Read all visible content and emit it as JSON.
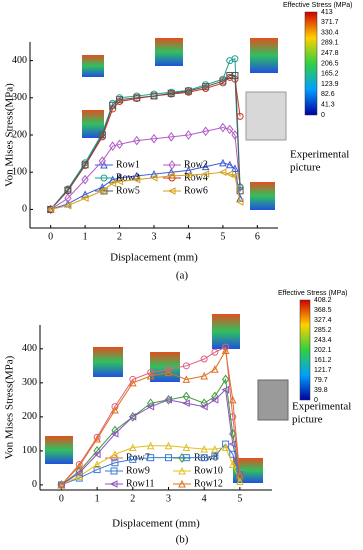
{
  "chart_data": [
    {
      "type": "line",
      "caption": "(a)",
      "x_label": "Displacement (mm)",
      "y_label": "Von Mises Stress(MPa)",
      "x": [
        0,
        0.5,
        1,
        1.5,
        1.8,
        2,
        2.5,
        3,
        3.5,
        4,
        4.5,
        5,
        5.2,
        5.35,
        5.5
      ],
      "series": [
        {
          "name": "Row1",
          "color": "#3b5bdb",
          "marker": "triangle",
          "values": [
            0,
            15,
            40,
            60,
            80,
            85,
            90,
            95,
            100,
            105,
            115,
            125,
            120,
            110,
            30
          ]
        },
        {
          "name": "Row2",
          "color": "#b05cc8",
          "marker": "diamond",
          "values": [
            0,
            30,
            80,
            130,
            170,
            175,
            185,
            190,
            195,
            200,
            210,
            220,
            215,
            200,
            60
          ]
        },
        {
          "name": "Row3",
          "color": "#1a9e8f",
          "marker": "circle",
          "values": [
            0,
            55,
            125,
            205,
            285,
            300,
            305,
            310,
            315,
            320,
            335,
            350,
            400,
            405,
            60
          ]
        },
        {
          "name": "Row4",
          "color": "#d03020",
          "marker": "circle",
          "values": [
            0,
            50,
            118,
            195,
            270,
            290,
            298,
            305,
            310,
            315,
            325,
            340,
            355,
            350,
            250
          ]
        },
        {
          "name": "Row5",
          "color": "#555555",
          "marker": "square",
          "values": [
            0,
            52,
            120,
            200,
            280,
            295,
            300,
            305,
            312,
            318,
            330,
            345,
            360,
            360,
            50
          ]
        },
        {
          "name": "Row6",
          "color": "#d4a017",
          "marker": "triangle-left",
          "values": [
            0,
            10,
            30,
            50,
            70,
            75,
            80,
            85,
            90,
            92,
            95,
            100,
            95,
            90,
            20
          ]
        }
      ],
      "xlim": [
        -0.6,
        6.6
      ],
      "xticks": [
        0,
        1,
        2,
        3,
        4,
        5,
        6
      ],
      "ylim": [
        -50,
        450
      ],
      "yticks": [
        0,
        100,
        200,
        300,
        400
      ],
      "colorbar": {
        "title": "Effective Stress (MPa)",
        "ticks": [
          413,
          371.7,
          330.4,
          289.1,
          247.8,
          206.5,
          165.2,
          123.9,
          82.6,
          41.3,
          0
        ]
      },
      "annotation": [
        "Experimental",
        "picture"
      ]
    },
    {
      "type": "line",
      "caption": "(b)",
      "x_label": "Displacement (mm)",
      "y_label": "Von Mises Stress(MPa)",
      "x": [
        0,
        0.5,
        1,
        1.5,
        2,
        2.5,
        3,
        3.5,
        4,
        4.3,
        4.6,
        4.8,
        5
      ],
      "series": [
        {
          "name": "Row7",
          "color": "#e06080",
          "marker": "circle",
          "values": [
            0,
            60,
            140,
            230,
            310,
            330,
            340,
            350,
            370,
            390,
            405,
            200,
            20
          ]
        },
        {
          "name": "Row8",
          "color": "#3a9a3a",
          "marker": "diamond",
          "values": [
            0,
            40,
            100,
            160,
            200,
            240,
            250,
            260,
            240,
            260,
            310,
            150,
            20
          ]
        },
        {
          "name": "Row9",
          "color": "#3a7bd5",
          "marker": "square",
          "values": [
            0,
            20,
            45,
            65,
            75,
            80,
            80,
            80,
            80,
            85,
            120,
            90,
            30
          ]
        },
        {
          "name": "Row10",
          "color": "#e0c020",
          "marker": "triangle",
          "values": [
            0,
            25,
            60,
            90,
            110,
            115,
            115,
            110,
            105,
            105,
            110,
            60,
            10
          ]
        },
        {
          "name": "Row11",
          "color": "#9050c0",
          "marker": "triangle-left",
          "values": [
            0,
            35,
            90,
            150,
            200,
            230,
            250,
            240,
            230,
            250,
            280,
            120,
            30
          ]
        },
        {
          "name": "Row12",
          "color": "#e07020",
          "marker": "triangle",
          "values": [
            0,
            55,
            135,
            220,
            300,
            320,
            330,
            310,
            320,
            340,
            395,
            250,
            30
          ]
        }
      ],
      "xlim": [
        -0.6,
        5.9
      ],
      "xticks": [
        0,
        1,
        2,
        3,
        4,
        5
      ],
      "ylim": [
        -15,
        470
      ],
      "yticks": [
        0,
        100,
        200,
        300,
        400
      ],
      "colorbar": {
        "title": "Effective Stress (MPa)",
        "ticks": [
          408.2,
          368.5,
          327.4,
          285.2,
          243.4,
          202.1,
          161.2,
          121.7,
          79.7,
          39.8,
          0
        ]
      },
      "annotation": [
        "Experimental",
        "picture"
      ]
    }
  ]
}
